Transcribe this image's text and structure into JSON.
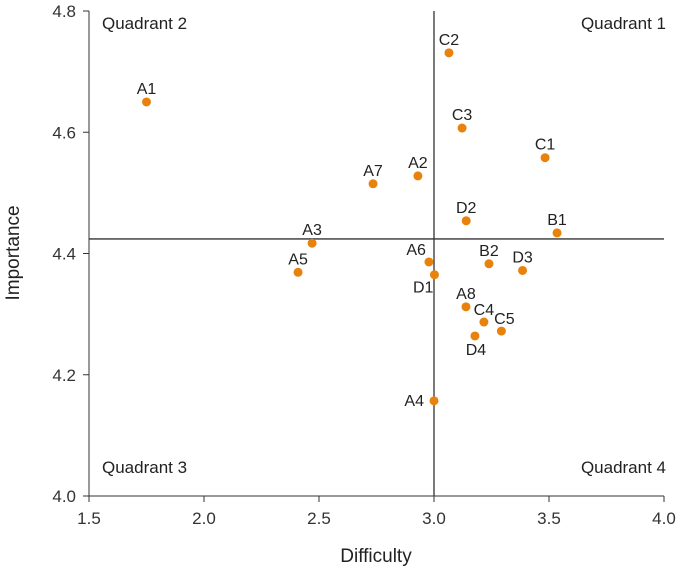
{
  "chart_data": {
    "type": "scatter",
    "xlabel": "Difficulty",
    "ylabel": "Importance",
    "xlim": [
      1.5,
      4.0
    ],
    "ylim": [
      4.0,
      4.8
    ],
    "xticks": [
      "1.5",
      "2.0",
      "2.5",
      "3.0",
      "3.5",
      "4.0"
    ],
    "yticks": [
      "4.0",
      "4.2",
      "4.4",
      "4.6",
      "4.8"
    ],
    "grid": false,
    "marker_color": "#e8820c",
    "reference_lines": {
      "x": 3.0,
      "y": 4.424
    },
    "quadrant_labels": [
      "Quadrant 1",
      "Quadrant 2",
      "Quadrant 3",
      "Quadrant 4"
    ],
    "points": [
      {
        "label": "A1",
        "x": 1.75,
        "y": 4.65
      },
      {
        "label": "C2",
        "x": 3.065,
        "y": 4.731
      },
      {
        "label": "C3",
        "x": 3.122,
        "y": 4.607
      },
      {
        "label": "C1",
        "x": 3.483,
        "y": 4.558
      },
      {
        "label": "A2",
        "x": 2.93,
        "y": 4.528
      },
      {
        "label": "A7",
        "x": 2.735,
        "y": 4.515
      },
      {
        "label": "D2",
        "x": 3.14,
        "y": 4.454
      },
      {
        "label": "B1",
        "x": 3.535,
        "y": 4.434
      },
      {
        "label": "A3",
        "x": 2.47,
        "y": 4.417
      },
      {
        "label": "A6",
        "x": 2.978,
        "y": 4.386
      },
      {
        "label": "A5",
        "x": 2.409,
        "y": 4.369
      },
      {
        "label": "D1",
        "x": 3.002,
        "y": 4.365
      },
      {
        "label": "B2",
        "x": 3.239,
        "y": 4.383
      },
      {
        "label": "D3",
        "x": 3.385,
        "y": 4.372
      },
      {
        "label": "A8",
        "x": 3.139,
        "y": 4.312
      },
      {
        "label": "C4",
        "x": 3.217,
        "y": 4.287
      },
      {
        "label": "C5",
        "x": 3.293,
        "y": 4.272
      },
      {
        "label": "D4",
        "x": 3.178,
        "y": 4.264
      },
      {
        "label": "A4",
        "x": 3.0,
        "y": 4.157
      }
    ]
  }
}
